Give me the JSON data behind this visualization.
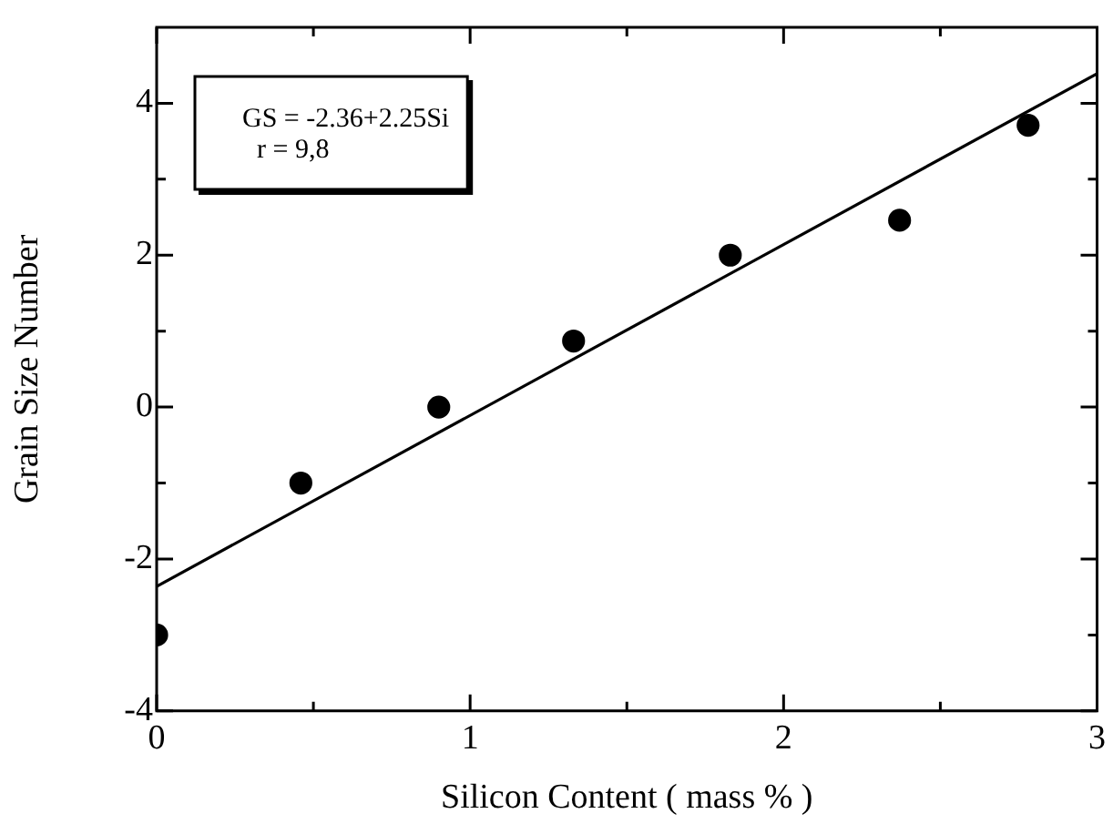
{
  "chart_data": {
    "type": "scatter",
    "xlabel": "Silicon Content ( mass % )",
    "ylabel": "Grain Size Number",
    "annotations": [
      "GS = -2.36+2.25Si",
      "r = 9,8"
    ],
    "xlim": [
      0,
      3
    ],
    "ylim": [
      -4,
      5
    ],
    "xticks": [
      0,
      {
        "value": 0.5,
        "label": null
      },
      1,
      {
        "value": 1.5,
        "label": null
      },
      2,
      {
        "value": 2.5,
        "label": null
      },
      3
    ],
    "yticks": [
      -4,
      {
        "value": -3,
        "label": null
      },
      -2,
      {
        "value": -1,
        "label": null
      },
      0,
      {
        "value": 1,
        "label": null
      },
      2,
      {
        "value": 3,
        "label": null
      },
      4
    ],
    "grid": false,
    "legend": false,
    "marker": "circle",
    "series": [
      {
        "color": "#000000",
        "x": [
          0,
          0.46,
          0.9,
          1.33,
          1.83,
          2.37,
          2.78
        ],
        "values": [
          -3,
          -1,
          0,
          0.87,
          2,
          2.46,
          3.71
        ]
      },
      {
        "type": "line",
        "color": "#000000",
        "marker": "none",
        "line_style": "solid",
        "x": [
          0,
          3
        ],
        "values": [
          -2.36,
          4.39
        ]
      }
    ]
  }
}
